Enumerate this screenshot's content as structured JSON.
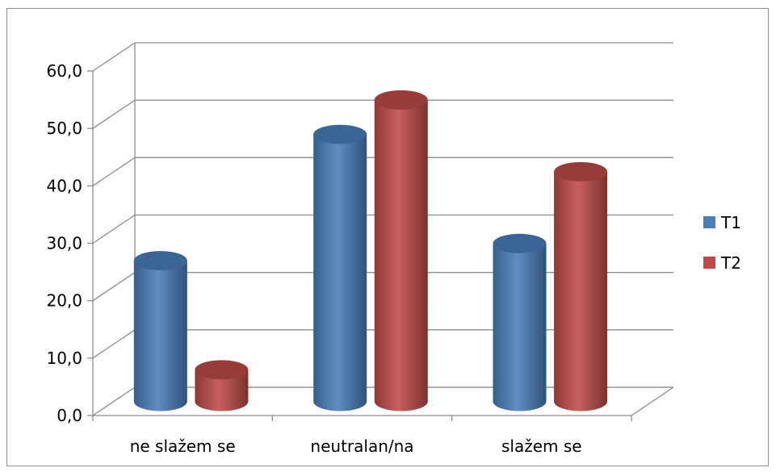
{
  "chart_data": {
    "type": "bar",
    "style": "3d-cylinder",
    "categories": [
      "ne slažem se",
      "neutralan/na",
      "slažem se"
    ],
    "series": [
      {
        "name": "T1",
        "values": [
          24.5,
          46.5,
          27.5
        ],
        "color": "#4a7ebb"
      },
      {
        "name": "T2",
        "values": [
          5.5,
          52.5,
          40.0
        ],
        "color": "#be4b48"
      }
    ],
    "ylim": [
      0,
      60
    ],
    "yticks": [
      "0,0",
      "10,0",
      "20,0",
      "30,0",
      "40,0",
      "50,0",
      "60,0"
    ],
    "grid": true,
    "legend_position": "right"
  }
}
